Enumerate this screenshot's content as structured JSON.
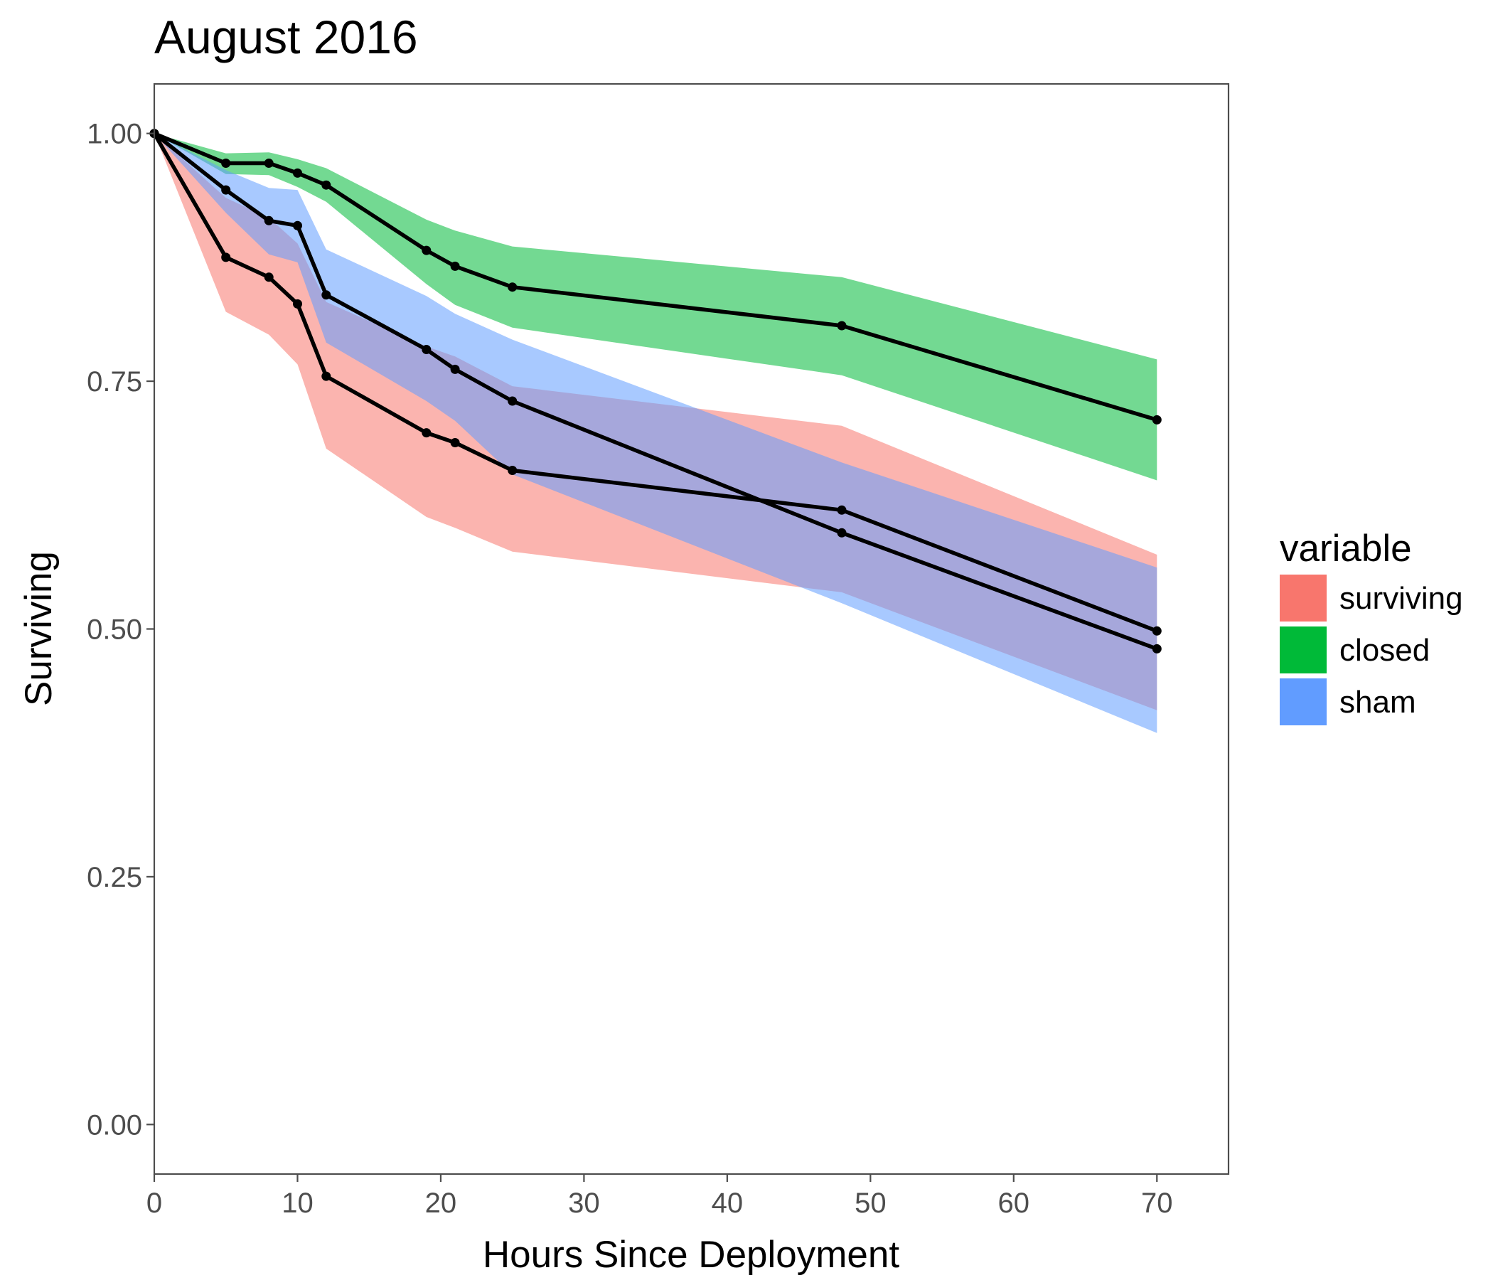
{
  "chart_data": {
    "type": "line",
    "title": "August 2016",
    "xlabel": "Hours Since Deployment",
    "ylabel": "Surviving",
    "xlim": [
      0,
      75
    ],
    "ylim": [
      -0.05,
      1.05
    ],
    "x_ticks": [
      0,
      10,
      20,
      30,
      40,
      50,
      60,
      70
    ],
    "y_ticks": [
      0,
      0.25,
      0.5,
      0.75,
      1.0
    ],
    "x_tick_labels": [
      "0",
      "10",
      "20",
      "30",
      "40",
      "50",
      "60",
      "70"
    ],
    "y_tick_labels": [
      "0.00",
      "0.25",
      "0.50",
      "0.75",
      "1.00"
    ],
    "grid": false,
    "legend": {
      "title": "variable",
      "placement": "right",
      "entries": [
        "surviving",
        "closed",
        "sham"
      ]
    },
    "series": [
      {
        "name": "surviving",
        "color": "#F8766D",
        "x": [
          0,
          5,
          8,
          10,
          12,
          19,
          21,
          25,
          48,
          70
        ],
        "y": [
          1.0,
          0.875,
          0.855,
          0.828,
          0.755,
          0.698,
          0.688,
          0.66,
          0.62,
          0.498
        ],
        "lower": [
          1.0,
          0.82,
          0.797,
          0.767,
          0.682,
          0.613,
          0.602,
          0.578,
          0.537,
          0.418
        ],
        "upper": [
          1.0,
          0.935,
          0.915,
          0.889,
          0.83,
          0.785,
          0.775,
          0.745,
          0.705,
          0.575
        ]
      },
      {
        "name": "closed",
        "color": "#00BA38",
        "x": [
          0,
          5,
          8,
          10,
          12,
          19,
          21,
          25,
          48,
          70
        ],
        "y": [
          1.0,
          0.97,
          0.97,
          0.96,
          0.948,
          0.882,
          0.866,
          0.845,
          0.806,
          0.711
        ],
        "lower": [
          1.0,
          0.959,
          0.958,
          0.946,
          0.931,
          0.848,
          0.827,
          0.804,
          0.756,
          0.65
        ],
        "upper": [
          1.0,
          0.98,
          0.981,
          0.974,
          0.965,
          0.913,
          0.902,
          0.886,
          0.855,
          0.772
        ]
      },
      {
        "name": "sham",
        "color": "#619CFF",
        "x": [
          0,
          5,
          8,
          10,
          12,
          19,
          21,
          25,
          48,
          70
        ],
        "y": [
          1.0,
          0.943,
          0.912,
          0.907,
          0.837,
          0.782,
          0.762,
          0.73,
          0.597,
          0.48
        ],
        "lower": [
          1.0,
          0.92,
          0.878,
          0.87,
          0.789,
          0.73,
          0.71,
          0.656,
          0.526,
          0.395
        ],
        "upper": [
          1.0,
          0.963,
          0.945,
          0.943,
          0.883,
          0.836,
          0.818,
          0.792,
          0.668,
          0.562
        ]
      }
    ]
  }
}
